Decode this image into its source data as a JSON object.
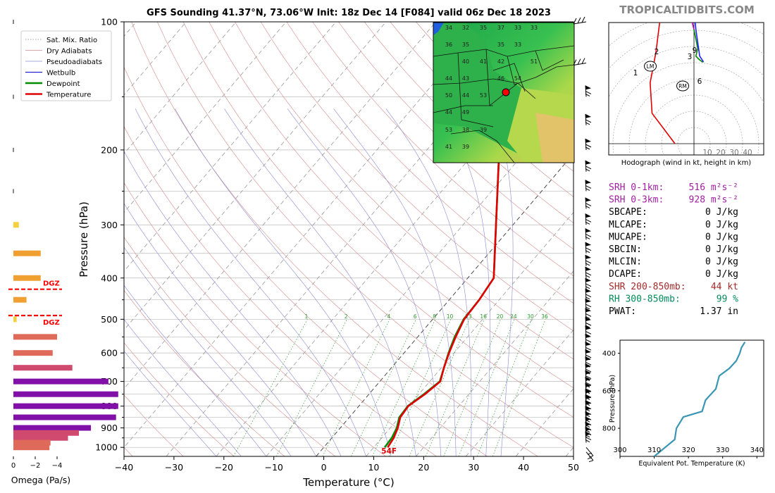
{
  "header": {
    "title": "GFS Sounding 41.37°N, 73.06°W Init: 18z Dec 14 [F084] valid 06z Dec 18 2023",
    "brand": "TROPICALTIDBITS.COM"
  },
  "colors": {
    "temperature": "#e00000",
    "dewpoint": "#008c00",
    "dry_adiabat": "#d48a8a",
    "moist_adiabat": "#8a8ad4",
    "mixing_ratio": "#2a9a2a",
    "wetbulb": "#0000cc",
    "dgz": "#ff0000",
    "hodo_red": "#e00000",
    "hodo_purple": "#b400b4",
    "hodo_blue": "#2020ff",
    "hodo_green": "#008c00",
    "theta_e_line": "#3a96b4",
    "srh_text": "#a020a0",
    "shr_text": "#a52a2a",
    "rh_text": "#008c5a"
  },
  "legend": {
    "items": [
      {
        "label": "Sat. Mix. Ratio",
        "icon": "dotted-line"
      },
      {
        "label": "Dry Adiabats",
        "icon": "thin-line"
      },
      {
        "label": "Pseudoadiabats",
        "icon": "thin-line"
      },
      {
        "label": "Wetbulb",
        "icon": "line"
      },
      {
        "label": "Dewpoint",
        "icon": "thick-line"
      },
      {
        "label": "Temperature",
        "icon": "thick-line"
      }
    ]
  },
  "chart_data": [
    {
      "type": "line",
      "name": "skew-t",
      "xlabel": "Temperature (°C)",
      "ylabel": "Pressure (hPa)",
      "xlim": [
        -40,
        50
      ],
      "ylim": [
        1050,
        100
      ],
      "y_scale": "log",
      "x_ticks": [
        -40,
        -30,
        -20,
        -10,
        0,
        10,
        20,
        30,
        40,
        50
      ],
      "x_tick_labels": [
        "−40",
        "−30",
        "−20",
        "−10",
        "0",
        "10",
        "20",
        "30",
        "40",
        "50"
      ],
      "y_ticks": [
        1000,
        900,
        800,
        700,
        600,
        500,
        400,
        300,
        200,
        100
      ],
      "y_tick_labels": [
        "1000",
        "900",
        "800",
        "700",
        "600",
        "500",
        "400",
        "300",
        "200",
        "100"
      ],
      "series": [
        {
          "name": "Temperature",
          "points": [
            [
              12.8,
              1000
            ],
            [
              12.4,
              950
            ],
            [
              11.5,
              900
            ],
            [
              10.2,
              850
            ],
            [
              9.9,
              800
            ],
            [
              11.2,
              750
            ],
            [
              12.1,
              700
            ],
            [
              10.5,
              650
            ],
            [
              9.0,
              600
            ],
            [
              7.6,
              550
            ],
            [
              6.3,
              500
            ],
            [
              6.0,
              450
            ],
            [
              5.2,
              400
            ],
            [
              -3.4,
              300
            ],
            [
              -15.5,
              200
            ],
            [
              -19.0,
              150
            ],
            [
              -5.8,
              100
            ]
          ]
        },
        {
          "name": "Dewpoint",
          "points": [
            [
              12.2,
              1000
            ],
            [
              12.0,
              950
            ],
            [
              11.3,
              900
            ],
            [
              10.0,
              850
            ],
            [
              9.8,
              800
            ],
            [
              11.0,
              750
            ],
            [
              12.0,
              700
            ],
            [
              10.5,
              650
            ],
            [
              8.9,
              600
            ],
            [
              7.4,
              550
            ],
            [
              6.2,
              500
            ],
            [
              6.0,
              450
            ],
            [
              5.2,
              400
            ],
            [
              -3.4,
              300
            ],
            [
              -15.5,
              200
            ],
            [
              -19.0,
              150
            ],
            [
              -20.0,
              100
            ]
          ]
        }
      ],
      "mixing_ratio_labels": [
        "1",
        "2",
        "4",
        "6",
        "8",
        "10",
        "13",
        "16",
        "20",
        "24",
        "30",
        "36"
      ],
      "surface_label": "54F",
      "dgz_label": "DGZ"
    },
    {
      "type": "bar",
      "name": "omega",
      "xlabel": "Omega (Pa/s)",
      "x_ticks": [
        "0",
        "−2",
        "−4"
      ],
      "xlim": [
        0,
        -5
      ],
      "levels": [
        100,
        150,
        200,
        250,
        300,
        350,
        400,
        450,
        500,
        550,
        600,
        650,
        700,
        750,
        800,
        850,
        900,
        925,
        950,
        975,
        1000
      ],
      "values": [
        -0.05,
        -0.05,
        -0.05,
        -0.05,
        -0.5,
        -2.5,
        -2.5,
        -1.2,
        -0.3,
        -4.0,
        -3.6,
        -5.4,
        -8.7,
        -9.6,
        -9.6,
        -9.4,
        -7.1,
        -6.0,
        -5.0,
        -3.4,
        -3.3
      ]
    },
    {
      "type": "line",
      "name": "hodograph",
      "caption": "Hodograph (wind in kt, height in km)",
      "ring_labels": [
        "10",
        "20",
        "30",
        "40"
      ],
      "height_labels": [
        "1",
        "2",
        "3",
        "6",
        "9"
      ],
      "storm_motion_labels": [
        "LM",
        "RM"
      ],
      "points_kt": [
        [
          -5,
          -20
        ],
        [
          -11,
          -12
        ],
        [
          -11.5,
          -4
        ],
        [
          -10,
          4
        ],
        [
          -9,
          12
        ],
        [
          -8,
          14
        ],
        [
          -4,
          15
        ],
        [
          -1.5,
          15
        ],
        [
          -1,
          14
        ],
        [
          0,
          10
        ],
        [
          1,
          5
        ],
        [
          0.5,
          3
        ],
        [
          1.5,
          2
        ],
        [
          2.2,
          1.5
        ],
        [
          2.5,
          1.5
        ],
        [
          1.5,
          3
        ],
        [
          0.5,
          10
        ],
        [
          0,
          16
        ],
        [
          1,
          15
        ],
        [
          2,
          16
        ]
      ],
      "lm_kt": [
        -8,
        11
      ],
      "rm_kt": [
        -2,
        4
      ]
    },
    {
      "type": "line",
      "name": "theta-e",
      "xlabel": "Equivalent Pot. Temperature (K)",
      "ylabel": "Pressure (hPa)",
      "xlim": [
        300,
        342
      ],
      "ylim": [
        950,
        330
      ],
      "x_ticks": [
        "300",
        "310",
        "320",
        "330",
        "340"
      ],
      "y_ticks": [
        "400",
        "600",
        "800"
      ],
      "points": [
        [
          310,
          950
        ],
        [
          312,
          920
        ],
        [
          316,
          860
        ],
        [
          316.5,
          800
        ],
        [
          318.5,
          740
        ],
        [
          324,
          710
        ],
        [
          324.5,
          680
        ],
        [
          325,
          650
        ],
        [
          326,
          630
        ],
        [
          328,
          590
        ],
        [
          329,
          520
        ],
        [
          332,
          480
        ],
        [
          334,
          440
        ],
        [
          335,
          400
        ],
        [
          335.5,
          370
        ],
        [
          336.5,
          340
        ]
      ]
    }
  ],
  "indices": [
    {
      "label": "SRH 0-1km:",
      "value": "516 m²s⁻²",
      "style": "srh"
    },
    {
      "label": "SRH 0-3km:",
      "value": "928 m²s⁻²",
      "style": "srh"
    },
    {
      "label": "SBCAPE:",
      "value": "0 J/kg",
      "style": "plain"
    },
    {
      "label": "MLCAPE:",
      "value": "0 J/kg",
      "style": "plain"
    },
    {
      "label": "MUCAPE:",
      "value": "0 J/kg",
      "style": "plain"
    },
    {
      "label": "SBCIN:",
      "value": "0 J/kg",
      "style": "plain"
    },
    {
      "label": "MLCIN:",
      "value": "0 J/kg",
      "style": "plain"
    },
    {
      "label": "DCAPE:",
      "value": "0 J/kg",
      "style": "plain"
    },
    {
      "label": "SHR 200-850mb:",
      "value": "44 kt",
      "style": "shr"
    },
    {
      "label": "RH 300-850mb:",
      "value": "99 %",
      "style": "rh"
    },
    {
      "label": "PWAT:",
      "value": "1.37 in",
      "style": "plain"
    }
  ],
  "inset_map": {
    "numbers": [
      "34",
      "32",
      "35",
      "37",
      "33",
      "33",
      "36",
      "35",
      "35",
      "33",
      "40",
      "41",
      "42",
      "51",
      "44",
      "43",
      "46",
      "54",
      "50",
      "44",
      "53",
      "44",
      "49",
      "53",
      "38",
      "39",
      "41",
      "39"
    ]
  }
}
